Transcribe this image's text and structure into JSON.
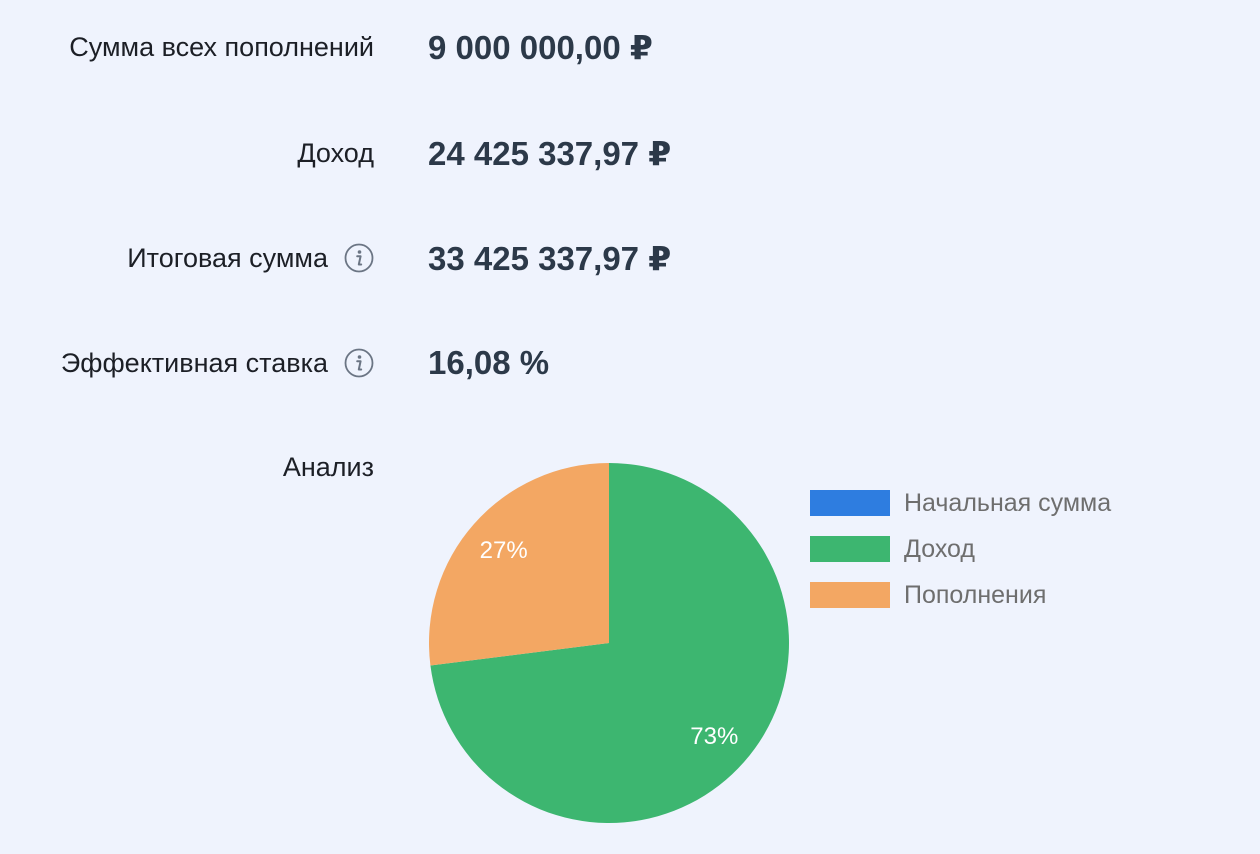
{
  "summary": {
    "deposits_label": "Сумма всех пополнений",
    "deposits_value": "9 000 000,00 ₽",
    "income_label": "Доход",
    "income_value": "24 425 337,97 ₽",
    "total_label": "Итоговая сумма",
    "total_value": "33 425 337,97 ₽",
    "rate_label": "Эффективная ставка",
    "rate_value": "16,08 %",
    "info_icon": "info-icon"
  },
  "analysis": {
    "label": "Анализ"
  },
  "chart_data": {
    "type": "pie",
    "categories": [
      "Начальная сумма",
      "Доход",
      "Пополнения"
    ],
    "values": [
      0,
      73,
      27
    ],
    "labels": [
      "",
      "73%",
      "27%"
    ],
    "colors": [
      "#2e7de0",
      "#3db670",
      "#f3a763"
    ],
    "legend_position": "right"
  }
}
